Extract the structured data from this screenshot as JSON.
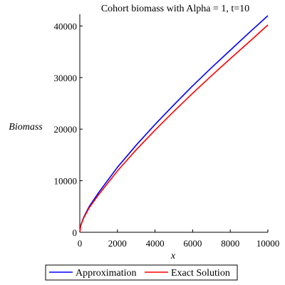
{
  "chart_data": {
    "type": "line",
    "title": "Cohort biomass with Alpha = 1, t=10",
    "xlabel": "x",
    "ylabel": "Biomass",
    "xlim": [
      0,
      10000
    ],
    "ylim": [
      0,
      42000
    ],
    "x_ticks": [
      0,
      2000,
      4000,
      6000,
      8000,
      10000
    ],
    "y_ticks": [
      0,
      10000,
      20000,
      30000,
      40000
    ],
    "x_tick_labels": [
      "0",
      "2000",
      "4000",
      "6000",
      "8000",
      "10000"
    ],
    "y_tick_labels": [
      "0",
      "10000",
      "20000",
      "30000",
      "40000"
    ],
    "grid": false,
    "legend_position": "bottom",
    "series": [
      {
        "name": "Approximation",
        "color": "#0000ff",
        "x": [
          0,
          50,
          200,
          500,
          1000,
          2000,
          3000,
          4000,
          5000,
          6000,
          7000,
          8000,
          9000,
          10000
        ],
        "y": [
          0,
          1330,
          2850,
          5000,
          7700,
          12600,
          16900,
          20900,
          24700,
          28400,
          31900,
          35300,
          38700,
          42000
        ]
      },
      {
        "name": "Exact Solution",
        "color": "#ff0000",
        "x": [
          0,
          50,
          200,
          500,
          1000,
          2000,
          3000,
          4000,
          5000,
          6000,
          7000,
          8000,
          9000,
          10000
        ],
        "y": [
          0,
          1280,
          2720,
          4750,
          7300,
          11900,
          16000,
          19800,
          23450,
          26950,
          30350,
          33650,
          36900,
          40200
        ]
      }
    ]
  }
}
